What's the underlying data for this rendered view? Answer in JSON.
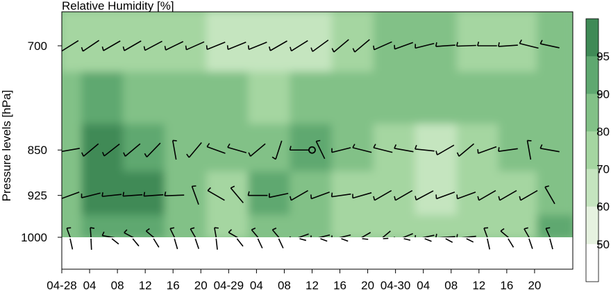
{
  "chart_data": {
    "type": "heatmap",
    "title": "Relative Humidity [%]",
    "ylabel": "Pressure levels [hPa]",
    "xlabel": "",
    "y_scale": "pressure (log, inverted)",
    "y_ticks": [
      700,
      850,
      925,
      1000
    ],
    "x_ticks": [
      "04-28",
      "04",
      "08",
      "12",
      "16",
      "20",
      "04-29",
      "04",
      "08",
      "12",
      "16",
      "20",
      "04-30",
      "04",
      "08",
      "12",
      "16",
      "20"
    ],
    "x_range_hours": [
      0,
      71
    ],
    "colorbar": {
      "label": "",
      "levels": [
        50,
        60,
        70,
        80,
        90,
        95
      ],
      "tick_labels": [
        "50",
        "60",
        "70",
        "80",
        "90",
        "95"
      ],
      "colors": [
        "#ffffff",
        "#e6f2e0",
        "#c5e5bf",
        "#a5d6a1",
        "#82c187",
        "#5fa870",
        "#3f8a56"
      ]
    },
    "levels_hpa": [
      700,
      775,
      850,
      925,
      1000
    ],
    "times_hours": [
      0,
      6,
      12,
      18,
      24,
      30,
      36,
      42,
      48,
      54,
      60,
      66,
      71
    ],
    "rh_percent": {
      "700": [
        75,
        70,
        72,
        78,
        68,
        62,
        65,
        78,
        82,
        80,
        74,
        76,
        82
      ],
      "775": [
        85,
        91,
        88,
        84,
        80,
        78,
        84,
        82,
        82,
        80,
        80,
        82,
        84
      ],
      "850": [
        88,
        95,
        94,
        86,
        82,
        88,
        90,
        80,
        72,
        66,
        74,
        80,
        82
      ],
      "925": [
        88,
        96,
        96,
        80,
        72,
        90,
        86,
        76,
        70,
        64,
        72,
        78,
        82
      ],
      "1000": [
        82,
        90,
        92,
        80,
        78,
        88,
        84,
        78,
        76,
        74,
        76,
        78,
        90
      ]
    },
    "grid": false,
    "legend": "colorbar right"
  }
}
